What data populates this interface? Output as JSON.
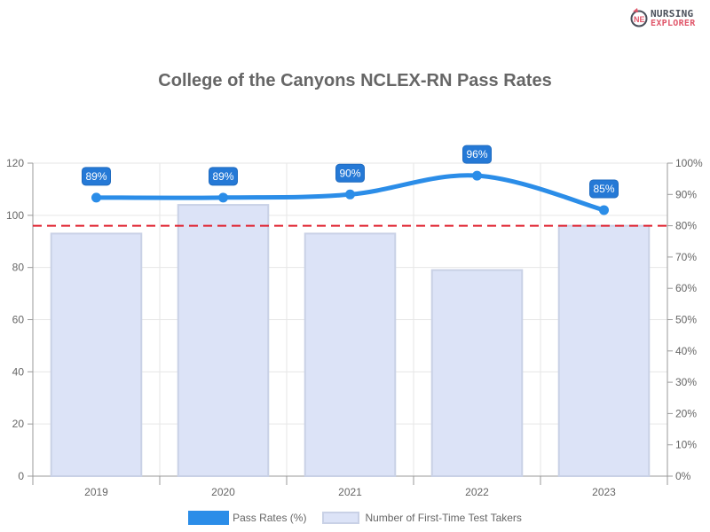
{
  "logo": {
    "line1": "NURSING",
    "line2": "EXPLORER"
  },
  "title": "College of the Canyons NCLEX-RN Pass Rates",
  "legend": {
    "line_label": "Pass Rates (%)",
    "bar_label": "Number of First-Time Test Takers"
  },
  "colors": {
    "line": "#2b8de8",
    "bar_fill": "#dce3f7",
    "bar_border": "#c9d1e6",
    "threshold": "#e0202e",
    "label_bg": "#2579d6"
  },
  "chart_data": {
    "type": "bar",
    "title": "College of the Canyons NCLEX-RN Pass Rates",
    "categories": [
      "2019",
      "2020",
      "2021",
      "2022",
      "2023"
    ],
    "series": [
      {
        "name": "Number of First-Time Test Takers",
        "type": "bar",
        "axis": "left",
        "values": [
          93,
          104,
          93,
          79,
          96
        ]
      },
      {
        "name": "Pass Rates (%)",
        "type": "line",
        "axis": "right",
        "values": [
          89,
          89,
          90,
          96,
          85
        ],
        "labels": [
          "89%",
          "89%",
          "90%",
          "96%",
          "85%"
        ]
      }
    ],
    "threshold": {
      "axis": "right",
      "value": 80,
      "style": "dashed",
      "color": "#e0202e"
    },
    "y_left": {
      "range": [
        0,
        120
      ],
      "ticks": [
        "0",
        "20",
        "40",
        "60",
        "80",
        "100",
        "120"
      ]
    },
    "y_right": {
      "range": [
        0,
        100
      ],
      "ticks": [
        "0%",
        "10%",
        "20%",
        "30%",
        "40%",
        "50%",
        "60%",
        "70%",
        "80%",
        "90%",
        "100%"
      ]
    },
    "xlabel": "",
    "ylabel": "",
    "grid": true,
    "legend_position": "bottom"
  }
}
